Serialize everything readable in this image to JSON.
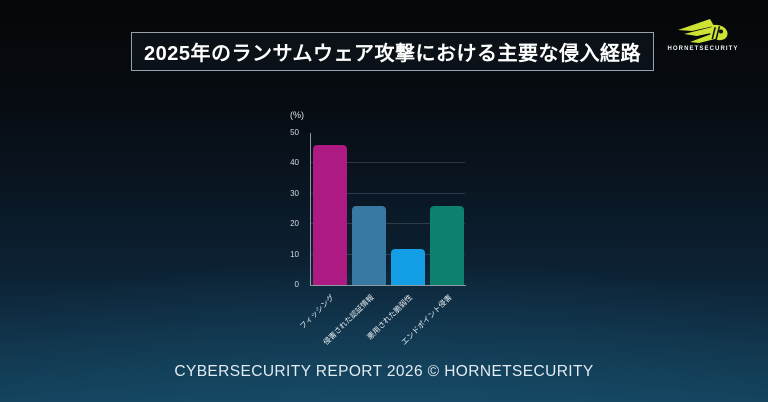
{
  "title": "2025年のランサムウェア攻撃における主要な侵入経路",
  "logo": {
    "brand": "HORNETSECURITY",
    "icon_color": "#cde232"
  },
  "footer": "CYBERSECURITY REPORT 2026 © HORNETSECURITY",
  "chart_data": {
    "type": "bar",
    "title": "2025年のランサムウェア攻撃における主要な侵入経路",
    "unit_label": "(%)",
    "categories": [
      "フィッシング",
      "侵害された認証情報",
      "悪用された脆弱性",
      "エンドポイント侵害"
    ],
    "values": [
      46,
      26,
      12,
      26
    ],
    "bar_colors": [
      "#ad1a81",
      "#3779a3",
      "#149ee6",
      "#0d8170"
    ],
    "xlabel": "",
    "ylabel": "(%)",
    "ylim": [
      0,
      50
    ],
    "yticks": [
      0,
      10,
      20,
      30,
      40,
      50
    ],
    "grid": true,
    "legend_position": "none"
  }
}
